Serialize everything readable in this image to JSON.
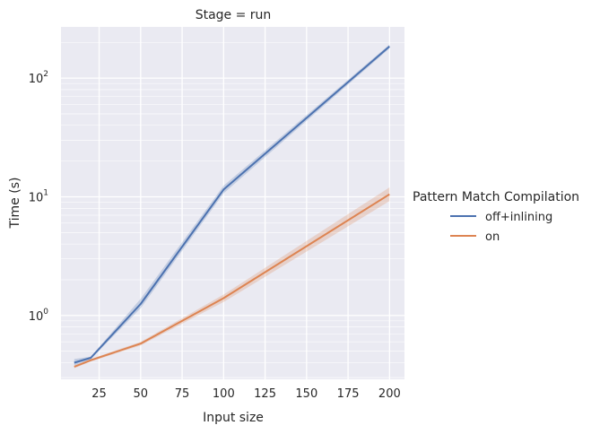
{
  "chart_data": {
    "type": "line",
    "title": "Stage = run",
    "xlabel": "Input size",
    "ylabel": "Time (s)",
    "yscale": "log",
    "xlim": [
      2,
      209
    ],
    "ylim": [
      0.29,
      270
    ],
    "x_ticks": [
      25,
      50,
      75,
      100,
      125,
      150,
      175,
      200
    ],
    "y_ticks": [
      {
        "value": 1,
        "base": "10",
        "exp": "0"
      },
      {
        "value": 10,
        "base": "10",
        "exp": "1"
      },
      {
        "value": 100,
        "base": "10",
        "exp": "2"
      }
    ],
    "grid": true,
    "legend": {
      "title": "Pattern Match Compilation",
      "placement": "right"
    },
    "series": [
      {
        "name": "off+inlining",
        "color": "#4c72b0",
        "x": [
          10,
          20,
          50,
          100,
          200
        ],
        "y": [
          0.4,
          0.44,
          1.25,
          11.5,
          185
        ],
        "ci_low": [
          0.38,
          0.43,
          1.15,
          10.7,
          178
        ],
        "ci_high": [
          0.43,
          0.45,
          1.38,
          12.4,
          192
        ]
      },
      {
        "name": "on",
        "color": "#dd8452",
        "x": [
          10,
          20,
          50,
          100,
          200
        ],
        "y": [
          0.37,
          0.42,
          0.58,
          1.4,
          10.5
        ],
        "ci_low": [
          0.36,
          0.41,
          0.56,
          1.3,
          9.2
        ],
        "ci_high": [
          0.38,
          0.43,
          0.6,
          1.5,
          12.0
        ]
      }
    ]
  }
}
